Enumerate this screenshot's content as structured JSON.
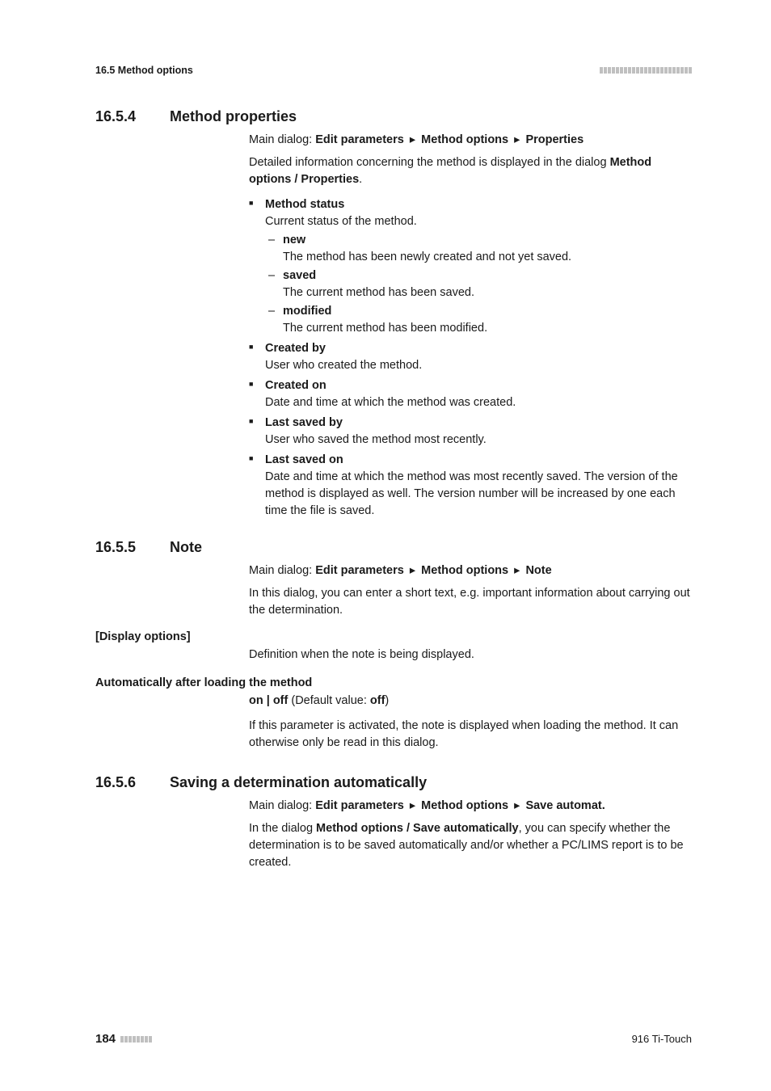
{
  "header": {
    "section_ref": "16.5 Method options",
    "tick_count": 23
  },
  "sections": [
    {
      "number": "16.5.4",
      "title": "Method properties",
      "path_label": "Main dialog:",
      "path_parts": [
        "Edit parameters",
        "Method options",
        "Properties"
      ],
      "intro_pre": "Detailed information concerning the method is displayed in the dialog ",
      "intro_bold": "Method options / Properties",
      "intro_post": ".",
      "props": [
        {
          "title": "Method status",
          "desc": "Current status of the method.",
          "sub": [
            {
              "title": "new",
              "desc": "The method has been newly created and not yet saved."
            },
            {
              "title": "saved",
              "desc": "The current method has been saved."
            },
            {
              "title": "modified",
              "desc": "The current method has been modified."
            }
          ]
        },
        {
          "title": "Created by",
          "desc": "User who created the method."
        },
        {
          "title": "Created on",
          "desc": "Date and time at which the method was created."
        },
        {
          "title": "Last saved by",
          "desc": "User who saved the method most recently."
        },
        {
          "title": "Last saved on",
          "desc": "Date and time at which the method was most recently saved. The version of the method is displayed as well. The version number will be increased by one each time the file is saved."
        }
      ]
    },
    {
      "number": "16.5.5",
      "title": "Note",
      "path_label": "Main dialog:",
      "path_parts": [
        "Edit parameters",
        "Method options",
        "Note"
      ],
      "intro": "In this dialog, you can enter a short text, e.g. important information about carrying out the determination.",
      "side_label": "[Display options]",
      "side_desc": "Definition when the note is being displayed.",
      "param_label": "Automatically after loading the method",
      "param_values_pre": "on | off",
      "param_values_mid": " (Default value: ",
      "param_values_def": "off",
      "param_values_post": ")",
      "param_desc": "If this parameter is activated, the note is displayed when loading the method. It can otherwise only be read in this dialog."
    },
    {
      "number": "16.5.6",
      "title": "Saving a determination automatically",
      "path_label": "Main dialog:",
      "path_parts": [
        "Edit parameters",
        "Method options",
        "Save automat."
      ],
      "intro_pre": "In the dialog ",
      "intro_bold": "Method options / Save automatically",
      "intro_post": ", you can specify whether the determination is to be saved automatically and/or whether a PC/LIMS report is to be created."
    }
  ],
  "footer": {
    "page_number": "184",
    "tick_count": 8,
    "device": "916 Ti-Touch"
  },
  "path_separator": "▸"
}
